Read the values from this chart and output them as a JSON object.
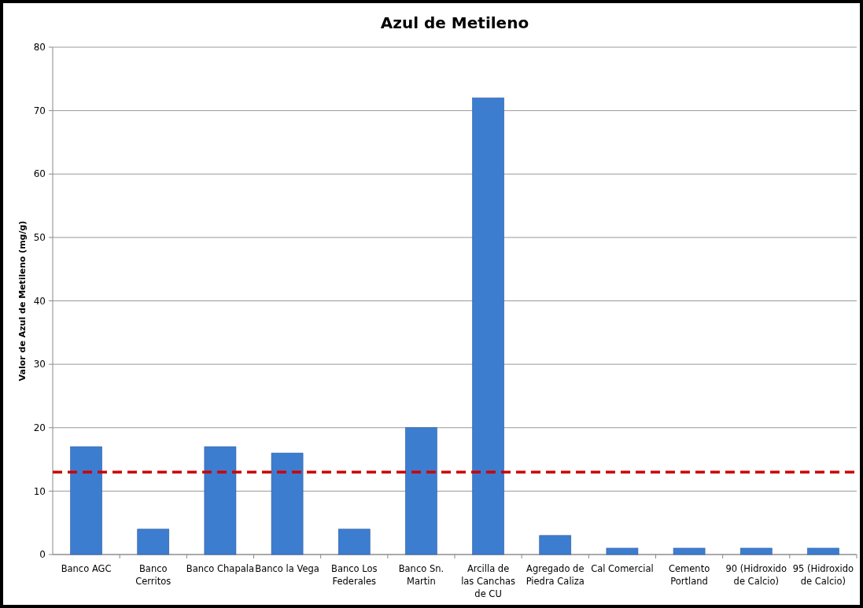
{
  "chart_data": {
    "type": "bar",
    "title": "Azul de Metileno",
    "ylabel": "Valor de Azul de Metileno (mg/g)",
    "categories": [
      "Banco AGC",
      "Banco Cerritos",
      "Banco Chapala",
      "Banco la Vega",
      "Banco Los Federales",
      "Banco Sn. Martin",
      "Arcilla de las Canchas de CU",
      "Agregado de Piedra Caliza",
      "Cal Comercial",
      "Cemento Portland",
      "90 (Hidroxido de Calcio)",
      "95 (Hidroxido de Calcio)"
    ],
    "values": [
      17,
      4,
      17,
      16,
      4,
      20,
      72,
      3,
      1,
      1,
      1,
      1
    ],
    "color": "#3d7dd0",
    "ylim": [
      0,
      80
    ],
    "yticks": [
      0,
      10,
      20,
      30,
      40,
      50,
      60,
      70,
      80
    ],
    "grid": "y",
    "ref_lines": [
      {
        "axis": "y",
        "value": 13,
        "color": "#cc0000",
        "line_style": "dashed"
      }
    ]
  }
}
